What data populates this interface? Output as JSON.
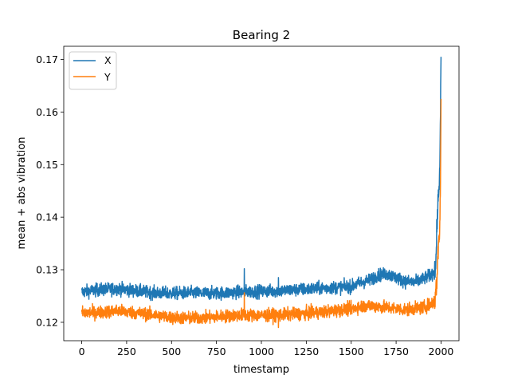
{
  "chart_data": {
    "type": "line",
    "title": "Bearing 2",
    "xlabel": "timestamp",
    "ylabel": "mean + abs vibration",
    "xlim": [
      -100,
      2100
    ],
    "ylim": [
      0.1165,
      0.1725
    ],
    "xticks": [
      0,
      250,
      500,
      750,
      1000,
      1250,
      1500,
      1750,
      2000
    ],
    "yticks": [
      0.12,
      0.13,
      0.14,
      0.15,
      0.16,
      0.17
    ],
    "ytick_labels": [
      "0.12",
      "0.13",
      "0.14",
      "0.15",
      "0.16",
      "0.17"
    ],
    "grid": false,
    "legend_position": "top-left",
    "series": [
      {
        "name": "X",
        "color": "#1f77b4",
        "noise": 0.0006,
        "points": [
          [
            0,
            0.1258
          ],
          [
            100,
            0.1262
          ],
          [
            200,
            0.1264
          ],
          [
            300,
            0.126
          ],
          [
            400,
            0.1256
          ],
          [
            500,
            0.1255
          ],
          [
            600,
            0.1256
          ],
          [
            700,
            0.1255
          ],
          [
            800,
            0.1256
          ],
          [
            900,
            0.1258
          ],
          [
            1000,
            0.1259
          ],
          [
            1100,
            0.126
          ],
          [
            1200,
            0.1262
          ],
          [
            1300,
            0.1264
          ],
          [
            1400,
            0.1266
          ],
          [
            1500,
            0.1268
          ],
          [
            1550,
            0.1275
          ],
          [
            1600,
            0.128
          ],
          [
            1650,
            0.129
          ],
          [
            1700,
            0.1292
          ],
          [
            1750,
            0.1285
          ],
          [
            1800,
            0.1278
          ],
          [
            1850,
            0.1276
          ],
          [
            1900,
            0.1282
          ],
          [
            1950,
            0.1292
          ],
          [
            1970,
            0.1305
          ],
          [
            1980,
            0.1405
          ],
          [
            1990,
            0.1465
          ],
          [
            1995,
            0.1535
          ],
          [
            2000,
            0.1705
          ]
        ],
        "spikes": [
          [
            905,
            0.1302
          ],
          [
            1095,
            0.1285
          ]
        ]
      },
      {
        "name": "Y",
        "color": "#ff7f0e",
        "noise": 0.0006,
        "points": [
          [
            0,
            0.1218
          ],
          [
            100,
            0.1219
          ],
          [
            200,
            0.1222
          ],
          [
            300,
            0.1218
          ],
          [
            400,
            0.1214
          ],
          [
            500,
            0.1209
          ],
          [
            600,
            0.1208
          ],
          [
            700,
            0.1209
          ],
          [
            800,
            0.1212
          ],
          [
            900,
            0.1214
          ],
          [
            1000,
            0.1213
          ],
          [
            1100,
            0.1214
          ],
          [
            1200,
            0.1216
          ],
          [
            1300,
            0.1218
          ],
          [
            1400,
            0.1222
          ],
          [
            1500,
            0.1226
          ],
          [
            1550,
            0.123
          ],
          [
            1600,
            0.1232
          ],
          [
            1700,
            0.1228
          ],
          [
            1800,
            0.1224
          ],
          [
            1900,
            0.1228
          ],
          [
            1950,
            0.1236
          ],
          [
            1965,
            0.124
          ],
          [
            1975,
            0.127
          ],
          [
            1985,
            0.1345
          ],
          [
            1992,
            0.1375
          ],
          [
            1997,
            0.1462
          ],
          [
            2000,
            0.1625
          ]
        ],
        "spikes": [
          [
            905,
            0.1256
          ],
          [
            1095,
            0.119
          ]
        ]
      }
    ]
  }
}
